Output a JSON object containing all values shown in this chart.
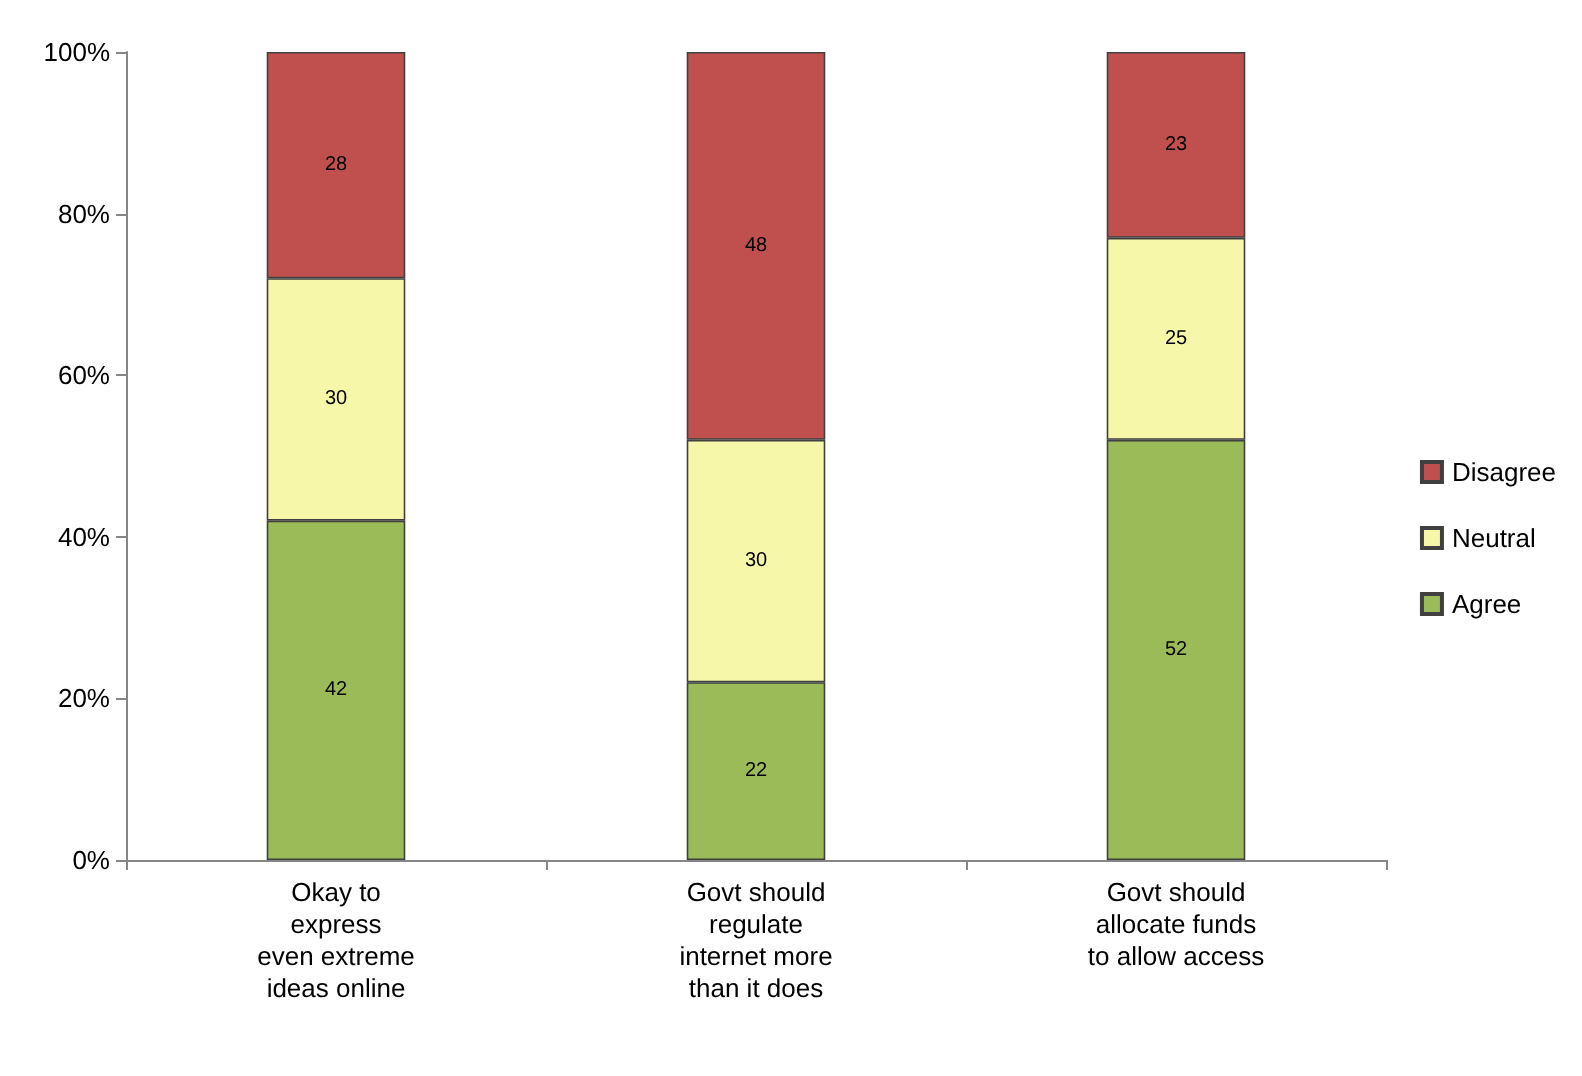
{
  "chart_data": {
    "type": "bar",
    "stacked": true,
    "categories": [
      "Okay to\nexpress\neven extreme\nideas online",
      "Govt should\nregulate\ninternet more\nthan it does",
      "Govt should\nallocate funds\nto allow access"
    ],
    "series": [
      {
        "name": "Agree",
        "color": "#9bbb59",
        "values": [
          42,
          22,
          52
        ]
      },
      {
        "name": "Neutral",
        "color": "#f7f7a9",
        "values": [
          30,
          30,
          25
        ]
      },
      {
        "name": "Disagree",
        "color": "#c0504d",
        "values": [
          28,
          48,
          23
        ]
      }
    ],
    "ylim": [
      0,
      100
    ],
    "yticks": [
      {
        "value": 0,
        "label": "0%"
      },
      {
        "value": 20,
        "label": "20%"
      },
      {
        "value": 40,
        "label": "40%"
      },
      {
        "value": 60,
        "label": "60%"
      },
      {
        "value": 80,
        "label": "80%"
      },
      {
        "value": 100,
        "label": "100%"
      }
    ],
    "data_labels": true,
    "grid": false,
    "legend": "right"
  }
}
